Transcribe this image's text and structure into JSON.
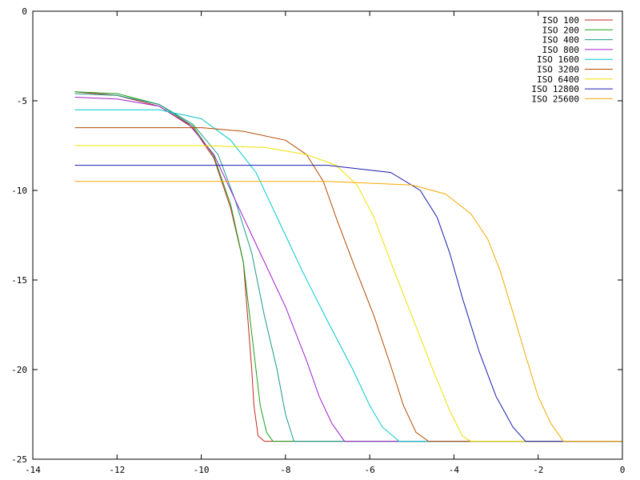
{
  "chart_data": {
    "type": "line",
    "title": "",
    "xlabel": "",
    "ylabel": "",
    "xlim": [
      -14,
      0
    ],
    "ylim": [
      -25,
      0
    ],
    "xticks": [
      -14,
      -12,
      -10,
      -8,
      -6,
      -4,
      -2,
      0
    ],
    "yticks": [
      0,
      -5,
      -10,
      -15,
      -20,
      -25
    ],
    "xtick_labels": [
      "-14",
      "-12",
      "-10",
      "-8",
      "-6",
      "-4",
      "-2",
      "0"
    ],
    "ytick_labels": [
      "0",
      "-5",
      "-10",
      "-15",
      "-20",
      "-25"
    ],
    "grid": false,
    "legend_position": "top-right",
    "series": [
      {
        "name": "ISO 100",
        "color": "#c0281c",
        "points": [
          [
            -13,
            -4.5
          ],
          [
            -12,
            -4.7
          ],
          [
            -11,
            -5.3
          ],
          [
            -10.2,
            -6.5
          ],
          [
            -9.7,
            -8.2
          ],
          [
            -9.3,
            -11
          ],
          [
            -9.0,
            -14
          ],
          [
            -8.9,
            -17
          ],
          [
            -8.8,
            -20
          ],
          [
            -8.75,
            -22
          ],
          [
            -8.65,
            -23.7
          ],
          [
            -8.5,
            -24
          ],
          [
            0,
            -24
          ]
        ]
      },
      {
        "name": "ISO 200",
        "color": "#1aa01a",
        "points": [
          [
            -13,
            -4.5
          ],
          [
            -12,
            -4.6
          ],
          [
            -11,
            -5.2
          ],
          [
            -10.2,
            -6.4
          ],
          [
            -9.7,
            -8.1
          ],
          [
            -9.3,
            -10.8
          ],
          [
            -9.0,
            -14
          ],
          [
            -8.85,
            -17
          ],
          [
            -8.7,
            -20
          ],
          [
            -8.6,
            -22
          ],
          [
            -8.45,
            -23.5
          ],
          [
            -8.3,
            -24
          ],
          [
            0,
            -24
          ]
        ]
      },
      {
        "name": "ISO 400",
        "color": "#1a9a8a",
        "points": [
          [
            -13,
            -4.6
          ],
          [
            -12,
            -4.7
          ],
          [
            -11,
            -5.2
          ],
          [
            -10.2,
            -6.3
          ],
          [
            -9.6,
            -8
          ],
          [
            -9.2,
            -10.5
          ],
          [
            -8.8,
            -13.5
          ],
          [
            -8.5,
            -17
          ],
          [
            -8.2,
            -20
          ],
          [
            -8.0,
            -22.5
          ],
          [
            -7.8,
            -24
          ],
          [
            0,
            -24
          ]
        ]
      },
      {
        "name": "ISO 800",
        "color": "#a020d0",
        "points": [
          [
            -13,
            -4.8
          ],
          [
            -12,
            -4.9
          ],
          [
            -11,
            -5.3
          ],
          [
            -10.3,
            -6.3
          ],
          [
            -9.7,
            -8
          ],
          [
            -9.2,
            -10.5
          ],
          [
            -8.6,
            -13.5
          ],
          [
            -8.0,
            -16.5
          ],
          [
            -7.5,
            -19.5
          ],
          [
            -7.2,
            -21.5
          ],
          [
            -6.9,
            -23
          ],
          [
            -6.6,
            -24
          ],
          [
            0,
            -24
          ]
        ]
      },
      {
        "name": "ISO 1600",
        "color": "#00c8d0",
        "points": [
          [
            -13,
            -5.5
          ],
          [
            -11,
            -5.5
          ],
          [
            -10,
            -6
          ],
          [
            -9.3,
            -7.2
          ],
          [
            -8.7,
            -9
          ],
          [
            -8.2,
            -11.5
          ],
          [
            -7.6,
            -14.5
          ],
          [
            -7.0,
            -17.3
          ],
          [
            -6.4,
            -20
          ],
          [
            -6.0,
            -22
          ],
          [
            -5.7,
            -23.2
          ],
          [
            -5.3,
            -24
          ],
          [
            0,
            -24
          ]
        ]
      },
      {
        "name": "ISO 3200",
        "color": "#b34a00",
        "points": [
          [
            -13,
            -6.5
          ],
          [
            -10,
            -6.5
          ],
          [
            -9,
            -6.7
          ],
          [
            -8,
            -7.2
          ],
          [
            -7.5,
            -8
          ],
          [
            -7.1,
            -9.5
          ],
          [
            -6.8,
            -11.5
          ],
          [
            -6.4,
            -14
          ],
          [
            -5.9,
            -17
          ],
          [
            -5.5,
            -19.8
          ],
          [
            -5.2,
            -22
          ],
          [
            -4.9,
            -23.5
          ],
          [
            -4.6,
            -24
          ],
          [
            0,
            -24
          ]
        ]
      },
      {
        "name": "ISO 6400",
        "color": "#f0e000",
        "points": [
          [
            -13,
            -7.5
          ],
          [
            -10,
            -7.5
          ],
          [
            -8.5,
            -7.6
          ],
          [
            -7.5,
            -8
          ],
          [
            -6.8,
            -8.6
          ],
          [
            -6.3,
            -9.7
          ],
          [
            -5.9,
            -11.5
          ],
          [
            -5.5,
            -14
          ],
          [
            -5.0,
            -17
          ],
          [
            -4.5,
            -20
          ],
          [
            -4.1,
            -22.3
          ],
          [
            -3.8,
            -23.7
          ],
          [
            -3.6,
            -24
          ],
          [
            0,
            -24
          ]
        ]
      },
      {
        "name": "ISO 12800",
        "color": "#1a1ab0",
        "points": [
          [
            -13,
            -8.6
          ],
          [
            -10,
            -8.6
          ],
          [
            -7,
            -8.6
          ],
          [
            -5.5,
            -9
          ],
          [
            -4.8,
            -10
          ],
          [
            -4.4,
            -11.5
          ],
          [
            -4.1,
            -13.5
          ],
          [
            -3.8,
            -16
          ],
          [
            -3.4,
            -19
          ],
          [
            -3.0,
            -21.5
          ],
          [
            -2.6,
            -23.2
          ],
          [
            -2.3,
            -24
          ],
          [
            0,
            -24
          ]
        ]
      },
      {
        "name": "ISO 25600",
        "color": "#f5a800",
        "points": [
          [
            -13,
            -9.5
          ],
          [
            -10,
            -9.5
          ],
          [
            -7,
            -9.5
          ],
          [
            -5,
            -9.7
          ],
          [
            -4.2,
            -10.2
          ],
          [
            -3.6,
            -11.3
          ],
          [
            -3.2,
            -12.7
          ],
          [
            -2.9,
            -14.5
          ],
          [
            -2.6,
            -16.8
          ],
          [
            -2.3,
            -19.2
          ],
          [
            -2.0,
            -21.5
          ],
          [
            -1.7,
            -23
          ],
          [
            -1.4,
            -24
          ],
          [
            0,
            -24
          ]
        ]
      }
    ]
  }
}
